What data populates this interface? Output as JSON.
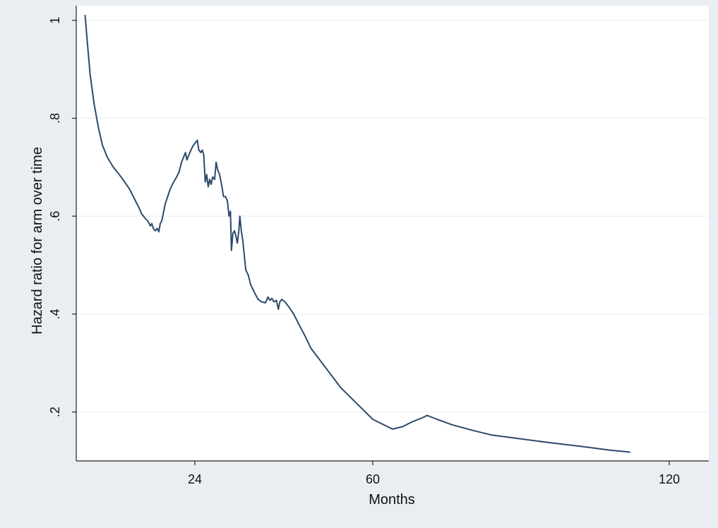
{
  "chart_data": {
    "type": "line",
    "title": "",
    "xlabel": "Months",
    "ylabel": "Hazard ratio for arm over time",
    "xlim": [
      0,
      128
    ],
    "ylim": [
      0.1,
      1.03
    ],
    "x_ticks": [
      {
        "value": 24,
        "label": "24"
      },
      {
        "value": 60,
        "label": "60"
      },
      {
        "value": 120,
        "label": "120"
      }
    ],
    "y_ticks": [
      {
        "value": 0.2,
        "label": ".2"
      },
      {
        "value": 0.4,
        "label": ".4"
      },
      {
        "value": 0.6,
        "label": ".6"
      },
      {
        "value": 0.8,
        "label": ".8"
      },
      {
        "value": 1.0,
        "label": "1"
      }
    ],
    "grid": true,
    "legend": "none",
    "colors": {
      "background": "#e8eef2",
      "plot_area": "#ffffff",
      "line": "#2c4a6b",
      "gridline": "#eef2f5",
      "axis": "#222222"
    },
    "series": [
      {
        "values": [
          [
            1.8,
            1.01
          ],
          [
            2.2,
            0.96
          ],
          [
            2.8,
            0.89
          ],
          [
            3.6,
            0.83
          ],
          [
            4.5,
            0.78
          ],
          [
            5.3,
            0.745
          ],
          [
            6.3,
            0.72
          ],
          [
            7.5,
            0.7
          ],
          [
            8.7,
            0.685
          ],
          [
            9.8,
            0.67
          ],
          [
            10.8,
            0.655
          ],
          [
            11.8,
            0.635
          ],
          [
            12.8,
            0.615
          ],
          [
            13.2,
            0.605
          ],
          [
            14.0,
            0.595
          ],
          [
            14.5,
            0.59
          ],
          [
            15.0,
            0.58
          ],
          [
            15.3,
            0.585
          ],
          [
            15.6,
            0.575
          ],
          [
            16.0,
            0.57
          ],
          [
            16.4,
            0.575
          ],
          [
            16.7,
            0.568
          ],
          [
            17.0,
            0.585
          ],
          [
            17.3,
            0.59
          ],
          [
            17.6,
            0.605
          ],
          [
            18.0,
            0.625
          ],
          [
            18.5,
            0.64
          ],
          [
            19.0,
            0.655
          ],
          [
            19.6,
            0.668
          ],
          [
            20.2,
            0.678
          ],
          [
            20.8,
            0.69
          ],
          [
            21.3,
            0.71
          ],
          [
            21.7,
            0.72
          ],
          [
            22.1,
            0.73
          ],
          [
            22.4,
            0.715
          ],
          [
            22.8,
            0.725
          ],
          [
            23.2,
            0.735
          ],
          [
            23.7,
            0.745
          ],
          [
            24.1,
            0.75
          ],
          [
            24.5,
            0.755
          ],
          [
            24.8,
            0.735
          ],
          [
            25.2,
            0.73
          ],
          [
            25.5,
            0.735
          ],
          [
            25.8,
            0.725
          ],
          [
            26.1,
            0.67
          ],
          [
            26.4,
            0.685
          ],
          [
            26.7,
            0.66
          ],
          [
            27.0,
            0.675
          ],
          [
            27.3,
            0.665
          ],
          [
            27.6,
            0.68
          ],
          [
            28.0,
            0.675
          ],
          [
            28.3,
            0.71
          ],
          [
            28.6,
            0.695
          ],
          [
            29.0,
            0.685
          ],
          [
            29.4,
            0.665
          ],
          [
            29.8,
            0.64
          ],
          [
            30.2,
            0.64
          ],
          [
            30.6,
            0.63
          ],
          [
            30.9,
            0.6
          ],
          [
            31.2,
            0.61
          ],
          [
            31.4,
            0.53
          ],
          [
            31.7,
            0.565
          ],
          [
            32.0,
            0.57
          ],
          [
            32.3,
            0.56
          ],
          [
            32.6,
            0.545
          ],
          [
            32.9,
            0.57
          ],
          [
            33.1,
            0.6
          ],
          [
            33.4,
            0.57
          ],
          [
            33.7,
            0.55
          ],
          [
            34.0,
            0.52
          ],
          [
            34.3,
            0.49
          ],
          [
            34.8,
            0.48
          ],
          [
            35.3,
            0.46
          ],
          [
            36.0,
            0.445
          ],
          [
            36.8,
            0.43
          ],
          [
            37.5,
            0.425
          ],
          [
            38.3,
            0.423
          ],
          [
            38.8,
            0.435
          ],
          [
            39.2,
            0.428
          ],
          [
            39.6,
            0.432
          ],
          [
            40.0,
            0.425
          ],
          [
            40.5,
            0.428
          ],
          [
            40.9,
            0.41
          ],
          [
            41.2,
            0.425
          ],
          [
            41.6,
            0.43
          ],
          [
            42.2,
            0.425
          ],
          [
            43.0,
            0.415
          ],
          [
            44.0,
            0.4
          ],
          [
            45.0,
            0.38
          ],
          [
            46.3,
            0.355
          ],
          [
            47.5,
            0.33
          ],
          [
            49.0,
            0.31
          ],
          [
            50.5,
            0.29
          ],
          [
            52.0,
            0.27
          ],
          [
            53.5,
            0.25
          ],
          [
            55.0,
            0.235
          ],
          [
            56.5,
            0.22
          ],
          [
            58.0,
            0.205
          ],
          [
            60.0,
            0.185
          ],
          [
            62.0,
            0.175
          ],
          [
            64.0,
            0.165
          ],
          [
            66.0,
            0.17
          ],
          [
            68.0,
            0.18
          ],
          [
            70.0,
            0.188
          ],
          [
            71.0,
            0.193
          ],
          [
            73.0,
            0.185
          ],
          [
            76.0,
            0.174
          ],
          [
            80.0,
            0.163
          ],
          [
            84.0,
            0.153
          ],
          [
            90.0,
            0.145
          ],
          [
            96.0,
            0.137
          ],
          [
            102.0,
            0.13
          ],
          [
            108.0,
            0.122
          ],
          [
            112.0,
            0.118
          ]
        ]
      }
    ]
  }
}
